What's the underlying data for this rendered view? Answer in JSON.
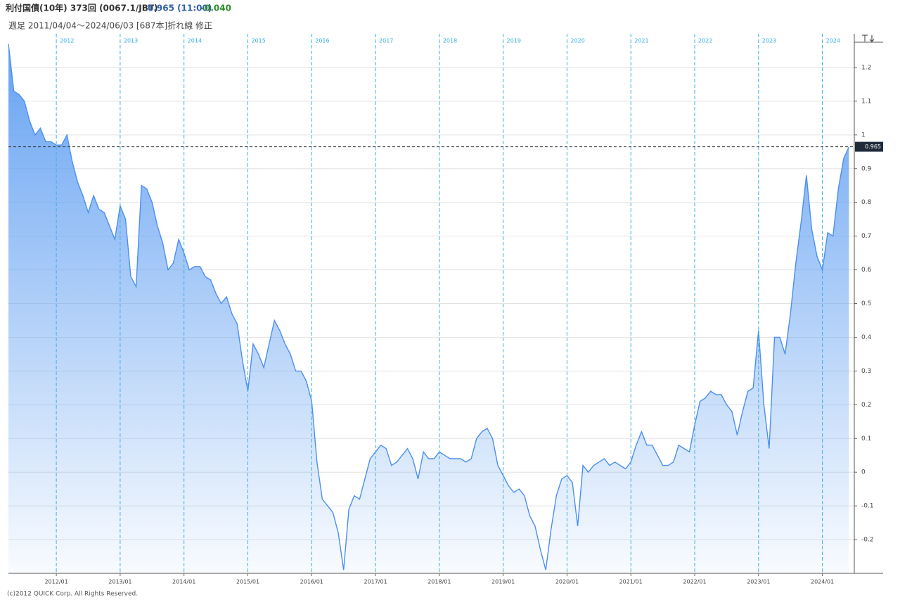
{
  "header": {
    "title": "利付国債(10年) 373回 (0067.1/JBT)",
    "price": "0.965 (11:00)",
    "change": "-0.040",
    "subtitle": "週足  2011/04/04～2024/06/03 [687本]折れ線 修正"
  },
  "footer": "(c)2012 QUICK Corp. All Rights Reserved.",
  "chart_data": {
    "type": "area",
    "color": "#4b8ff0",
    "grid": true,
    "ylim": [
      -0.3,
      1.3
    ],
    "yticks": [
      -0.2,
      -0.1,
      0,
      0.1,
      0.2,
      0.3,
      0.4,
      0.5,
      0.6,
      0.7,
      0.8,
      0.9,
      1,
      1.1,
      1.2
    ],
    "xlim": [
      "2011/04",
      "2024/07"
    ],
    "xticks": [
      "2012/01",
      "2013/01",
      "2014/01",
      "2015/01",
      "2016/01",
      "2017/01",
      "2018/01",
      "2019/01",
      "2020/01",
      "2021/01",
      "2022/01",
      "2023/01",
      "2024/01"
    ],
    "year_labels": [
      "2012",
      "2013",
      "2014",
      "2015",
      "2016",
      "2017",
      "2018",
      "2019",
      "2020",
      "2021",
      "2022",
      "2023",
      "2024"
    ],
    "current_value": 0.965,
    "x": [
      "2011/04",
      "2011/05",
      "2011/06",
      "2011/07",
      "2011/08",
      "2011/09",
      "2011/10",
      "2011/11",
      "2011/12",
      "2012/01",
      "2012/02",
      "2012/03",
      "2012/04",
      "2012/05",
      "2012/06",
      "2012/07",
      "2012/08",
      "2012/09",
      "2012/10",
      "2012/11",
      "2012/12",
      "2013/01",
      "2013/02",
      "2013/03",
      "2013/04",
      "2013/05",
      "2013/06",
      "2013/07",
      "2013/08",
      "2013/09",
      "2013/10",
      "2013/11",
      "2013/12",
      "2014/01",
      "2014/02",
      "2014/03",
      "2014/04",
      "2014/05",
      "2014/06",
      "2014/07",
      "2014/08",
      "2014/09",
      "2014/10",
      "2014/11",
      "2014/12",
      "2015/01",
      "2015/02",
      "2015/03",
      "2015/04",
      "2015/05",
      "2015/06",
      "2015/07",
      "2015/08",
      "2015/09",
      "2015/10",
      "2015/11",
      "2015/12",
      "2016/01",
      "2016/02",
      "2016/03",
      "2016/04",
      "2016/05",
      "2016/06",
      "2016/07",
      "2016/08",
      "2016/09",
      "2016/10",
      "2016/11",
      "2016/12",
      "2017/01",
      "2017/02",
      "2017/03",
      "2017/04",
      "2017/05",
      "2017/06",
      "2017/07",
      "2017/08",
      "2017/09",
      "2017/10",
      "2017/11",
      "2017/12",
      "2018/01",
      "2018/02",
      "2018/03",
      "2018/04",
      "2018/05",
      "2018/06",
      "2018/07",
      "2018/08",
      "2018/09",
      "2018/10",
      "2018/11",
      "2018/12",
      "2019/01",
      "2019/02",
      "2019/03",
      "2019/04",
      "2019/05",
      "2019/06",
      "2019/07",
      "2019/08",
      "2019/09",
      "2019/10",
      "2019/11",
      "2019/12",
      "2020/01",
      "2020/02",
      "2020/03",
      "2020/04",
      "2020/05",
      "2020/06",
      "2020/07",
      "2020/08",
      "2020/09",
      "2020/10",
      "2020/11",
      "2020/12",
      "2021/01",
      "2021/02",
      "2021/03",
      "2021/04",
      "2021/05",
      "2021/06",
      "2021/07",
      "2021/08",
      "2021/09",
      "2021/10",
      "2021/11",
      "2021/12",
      "2022/01",
      "2022/02",
      "2022/03",
      "2022/04",
      "2022/05",
      "2022/06",
      "2022/07",
      "2022/08",
      "2022/09",
      "2022/10",
      "2022/11",
      "2022/12",
      "2023/01",
      "2023/02",
      "2023/03",
      "2023/04",
      "2023/05",
      "2023/06",
      "2023/07",
      "2023/08",
      "2023/09",
      "2023/10",
      "2023/11",
      "2023/12",
      "2024/01",
      "2024/02",
      "2024/03",
      "2024/04",
      "2024/05",
      "2024/06"
    ],
    "values": [
      1.27,
      1.13,
      1.12,
      1.1,
      1.04,
      1.0,
      1.02,
      0.98,
      0.98,
      0.97,
      0.97,
      1.0,
      0.92,
      0.86,
      0.82,
      0.77,
      0.82,
      0.78,
      0.77,
      0.73,
      0.69,
      0.79,
      0.75,
      0.58,
      0.55,
      0.85,
      0.84,
      0.8,
      0.73,
      0.68,
      0.6,
      0.62,
      0.69,
      0.65,
      0.6,
      0.61,
      0.61,
      0.58,
      0.57,
      0.53,
      0.5,
      0.52,
      0.47,
      0.44,
      0.33,
      0.24,
      0.38,
      0.35,
      0.31,
      0.38,
      0.45,
      0.42,
      0.38,
      0.35,
      0.3,
      0.3,
      0.27,
      0.21,
      0.03,
      -0.08,
      -0.1,
      -0.12,
      -0.18,
      -0.29,
      -0.11,
      -0.07,
      -0.08,
      -0.02,
      0.04,
      0.06,
      0.08,
      0.07,
      0.02,
      0.03,
      0.05,
      0.07,
      0.04,
      -0.02,
      0.06,
      0.04,
      0.04,
      0.06,
      0.05,
      0.04,
      0.04,
      0.04,
      0.03,
      0.04,
      0.1,
      0.12,
      0.13,
      0.1,
      0.02,
      -0.01,
      -0.04,
      -0.06,
      -0.05,
      -0.07,
      -0.13,
      -0.16,
      -0.23,
      -0.29,
      -0.17,
      -0.07,
      -0.02,
      -0.01,
      -0.03,
      -0.16,
      0.02,
      0.0,
      0.02,
      0.03,
      0.04,
      0.02,
      0.03,
      0.02,
      0.01,
      0.03,
      0.08,
      0.12,
      0.08,
      0.08,
      0.05,
      0.02,
      0.02,
      0.03,
      0.08,
      0.07,
      0.06,
      0.14,
      0.21,
      0.22,
      0.24,
      0.23,
      0.23,
      0.2,
      0.18,
      0.11,
      0.18,
      0.24,
      0.25,
      0.42,
      0.2,
      0.07,
      0.4,
      0.4,
      0.35,
      0.47,
      0.62,
      0.74,
      0.88,
      0.72,
      0.64,
      0.6,
      0.71,
      0.7,
      0.84,
      0.93,
      0.965
    ]
  }
}
